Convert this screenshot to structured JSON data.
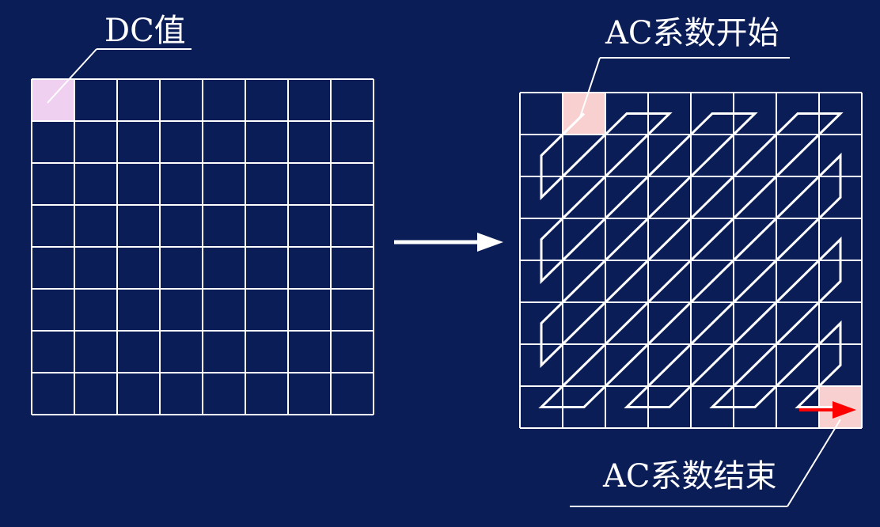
{
  "colors": {
    "background": "#0b1d57",
    "grid_line": "#ffffff",
    "dc_cell_fill": "#f0d0f0",
    "ac_cell_fill": "#f8d0d0",
    "end_arrow": "#ff0000",
    "zigzag_line": "#ffffff"
  },
  "left_matrix": {
    "rows": 8,
    "cols": 8,
    "highlight_cell": [
      0,
      0
    ],
    "label": "DC值"
  },
  "right_matrix": {
    "rows": 8,
    "cols": 8,
    "start_cell": [
      0,
      1
    ],
    "end_cell": [
      7,
      7
    ],
    "start_label": "AC系数开始",
    "end_label": "AC系数结束",
    "scan_order": "zigzag"
  },
  "transform_arrow": {
    "direction": "right"
  }
}
